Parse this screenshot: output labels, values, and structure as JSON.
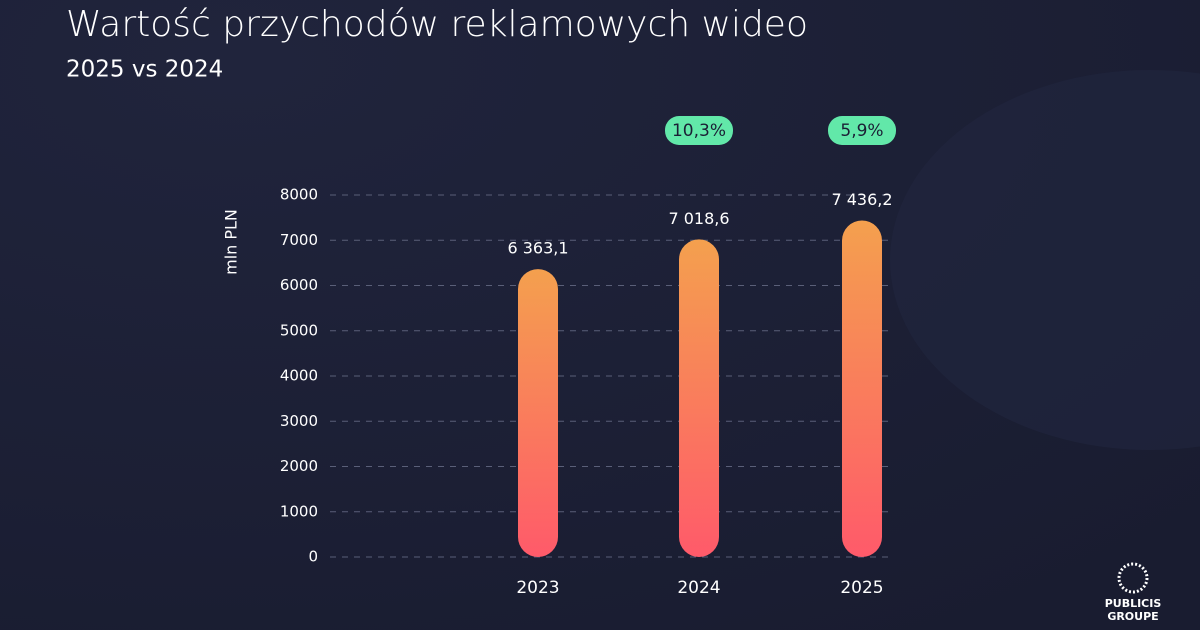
{
  "chart_data": {
    "type": "bar",
    "title": "Wartość przychodów reklamowych wideo",
    "subtitle": "2025 vs 2024",
    "y_label": "mln PLN",
    "categories": [
      "2023",
      "2024",
      "2025"
    ],
    "values": [
      6363.1,
      7018.6,
      7436.2
    ],
    "value_labels": [
      "6 363,1",
      "7 018,6",
      "7 436,2"
    ],
    "growth_labels": [
      null,
      "10,3%",
      "5,9%"
    ],
    "colors": [
      "#f4a04e",
      "#ff5a6a"
    ],
    "badge_color": "#62e8a9",
    "ylim": [
      0,
      8000
    ],
    "yticks": [
      0,
      1000,
      2000,
      3000,
      4000,
      5000,
      6000,
      7000,
      8000
    ],
    "grid": true
  },
  "logo": [
    "PUBLICIS",
    "GROUPE"
  ]
}
